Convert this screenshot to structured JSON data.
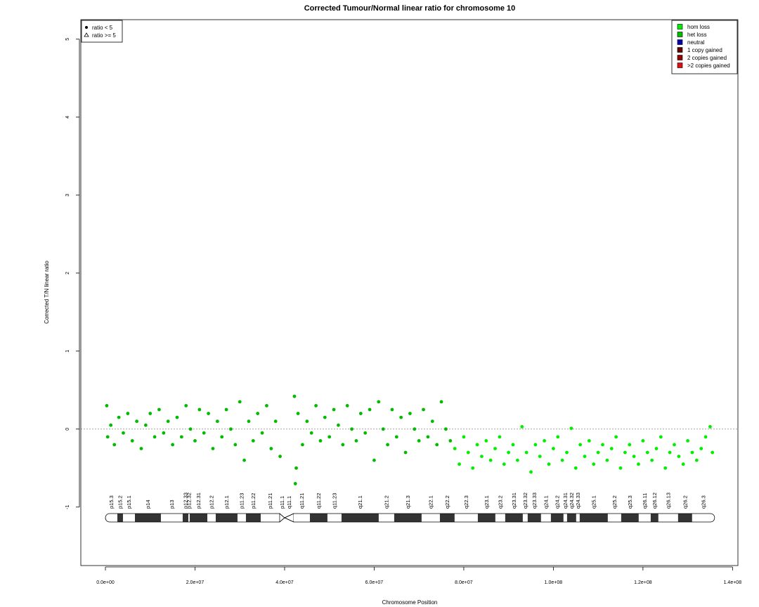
{
  "chart_data": {
    "type": "scatter",
    "title": "Corrected Tumour/Normal linear ratio for chromosome  10",
    "x_label": "Chromosome Position",
    "y_label": "Corrected T/N linear ratio",
    "xlim": [
      -5490000.0,
      141200000.0
    ],
    "ylim": [
      -1.75,
      5.25
    ],
    "xticks": [
      {
        "value": 0,
        "label": "0.0e+00"
      },
      {
        "value": 20000000.0,
        "label": "2.0e+07"
      },
      {
        "value": 40000000.0,
        "label": "4.0e+07"
      },
      {
        "value": 60000000.0,
        "label": "6.0e+07"
      },
      {
        "value": 80000000.0,
        "label": "8.0e+07"
      },
      {
        "value": 100000000.0,
        "label": "1.0e+08"
      },
      {
        "value": 120000000.0,
        "label": "1.2e+08"
      },
      {
        "value": 140000000.0,
        "label": "1.4e+08"
      }
    ],
    "yticks": [
      -1,
      0,
      1,
      2,
      3,
      4,
      5
    ],
    "reference_line": 0,
    "shape_legend": [
      {
        "label": "ratio < 5",
        "marker": "circle"
      },
      {
        "label": "ratio >= 5",
        "marker": "triangle"
      }
    ],
    "legend_position": "top-right",
    "series": [
      {
        "name": "hom loss",
        "color": "#00ee00",
        "x": [
          78000000.0,
          79000000.0,
          80000000.0,
          81000000.0,
          82000000.0,
          83000000.0,
          84000000.0,
          85000000.0,
          86000000.0,
          87000000.0,
          88000000.0,
          89000000.0,
          90000000.0,
          91000000.0,
          92000000.0,
          93000000.0,
          94000000.0,
          95000000.0,
          96000000.0,
          97000000.0,
          98000000.0,
          99000000.0,
          100000000.0,
          101000000.0,
          102000000.0,
          103000000.0,
          104000000.0,
          105000000.0,
          106000000.0,
          107000000.0,
          108000000.0,
          109000000.0,
          110000000.0,
          111000000.0,
          112000000.0,
          113000000.0,
          114000000.0,
          115000000.0,
          116000000.0,
          117000000.0,
          118000000.0,
          119000000.0,
          120000000.0,
          121000000.0,
          122000000.0,
          123000000.0,
          124000000.0,
          125000000.0,
          126000000.0,
          127000000.0,
          128000000.0,
          129000000.0,
          130000000.0,
          131000000.0,
          132000000.0,
          133000000.0,
          134000000.0,
          135000000.0,
          135500000.0
        ],
        "values": [
          -0.25,
          -0.45,
          -0.1,
          -0.3,
          -0.5,
          -0.2,
          -0.35,
          -0.15,
          -0.4,
          -0.25,
          -0.1,
          -0.45,
          -0.3,
          -0.2,
          -0.4,
          0.03,
          -0.3,
          -0.55,
          -0.2,
          -0.35,
          -0.15,
          -0.45,
          -0.25,
          -0.1,
          -0.4,
          -0.3,
          0.01,
          -0.5,
          -0.2,
          -0.35,
          -0.15,
          -0.45,
          -0.3,
          -0.2,
          -0.4,
          -0.25,
          -0.1,
          -0.5,
          -0.3,
          -0.2,
          -0.35,
          -0.45,
          -0.15,
          -0.3,
          -0.4,
          -0.25,
          -0.1,
          -0.5,
          -0.3,
          -0.2,
          -0.35,
          -0.45,
          -0.15,
          -0.3,
          -0.4,
          -0.25,
          -0.1,
          0.03,
          -0.3
        ]
      },
      {
        "name": "het loss",
        "color": "#00bb00",
        "x": [
          300000.0,
          500000.0,
          1200000.0,
          2000000.0,
          3000000.0,
          4000000.0,
          5000000.0,
          6000000.0,
          7000000.0,
          8000000.0,
          9000000.0,
          10000000.0,
          11000000.0,
          12000000.0,
          13000000.0,
          14000000.0,
          15000000.0,
          16000000.0,
          17000000.0,
          18000000.0,
          19000000.0,
          20000000.0,
          21000000.0,
          22000000.0,
          23000000.0,
          24000000.0,
          25000000.0,
          26000000.0,
          27000000.0,
          28000000.0,
          29000000.0,
          30000000.0,
          31000000.0,
          32000000.0,
          33000000.0,
          34000000.0,
          35000000.0,
          36000000.0,
          37000000.0,
          38000000.0,
          39000000.0,
          42200000.0,
          42400000.0,
          42600000.0,
          43000000.0,
          44000000.0,
          45000000.0,
          46000000.0,
          47000000.0,
          48000000.0,
          49000000.0,
          50000000.0,
          51000000.0,
          52000000.0,
          53000000.0,
          54000000.0,
          55000000.0,
          56000000.0,
          57000000.0,
          58000000.0,
          59000000.0,
          60000000.0,
          61000000.0,
          62000000.0,
          63000000.0,
          64000000.0,
          65000000.0,
          66000000.0,
          67000000.0,
          68000000.0,
          69000000.0,
          70000000.0,
          71000000.0,
          72000000.0,
          73000000.0,
          74000000.0,
          75000000.0,
          76000000.0,
          77000000.0
        ],
        "values": [
          0.3,
          -0.1,
          0.05,
          -0.2,
          0.15,
          -0.05,
          0.2,
          -0.15,
          0.1,
          -0.25,
          0.05,
          0.2,
          -0.1,
          0.25,
          -0.05,
          0.1,
          -0.2,
          0.15,
          -0.1,
          0.3,
          0.0,
          -0.15,
          0.25,
          -0.05,
          0.2,
          -0.25,
          0.1,
          -0.1,
          0.25,
          0.0,
          -0.2,
          0.35,
          -0.4,
          0.1,
          -0.15,
          0.2,
          -0.05,
          0.3,
          -0.25,
          0.1,
          -0.35,
          0.42,
          -0.7,
          -0.5,
          0.2,
          -0.2,
          0.1,
          -0.05,
          0.3,
          -0.15,
          0.15,
          -0.1,
          0.25,
          0.05,
          -0.2,
          0.3,
          0.0,
          -0.15,
          0.2,
          -0.05,
          0.25,
          -0.4,
          0.35,
          0.0,
          -0.2,
          0.25,
          -0.1,
          0.15,
          -0.3,
          0.2,
          0.0,
          -0.15,
          0.25,
          -0.1,
          0.1,
          -0.2,
          0.35,
          0.0,
          -0.15
        ]
      },
      {
        "name": "neutral",
        "color": "#0000aa",
        "x": [],
        "values": []
      },
      {
        "name": "1 copy gained",
        "color": "#660000",
        "x": [],
        "values": []
      },
      {
        "name": "2 copies gained",
        "color": "#990000",
        "x": [],
        "values": []
      },
      {
        "name": ">2 copies gained",
        "color": "#dd1111",
        "x": [],
        "values": []
      }
    ],
    "bands": [
      {
        "name": "p15.3",
        "start": 0,
        "end": 2670000.0,
        "stain": "gneg"
      },
      {
        "name": "p15.2",
        "start": 2670000.0,
        "end": 3920000.0,
        "stain": "gpos"
      },
      {
        "name": "p15.1",
        "start": 3920000.0,
        "end": 6590000.0,
        "stain": "gneg"
      },
      {
        "name": "p14",
        "start": 6590000.0,
        "end": 12390000.0,
        "stain": "gpos"
      },
      {
        "name": "p13",
        "start": 12390000.0,
        "end": 17250000.0,
        "stain": "gneg"
      },
      {
        "name": "p12.33",
        "start": 17250000.0,
        "end": 18510000.0,
        "stain": "gpos"
      },
      {
        "name": "p12.32",
        "start": 18510000.0,
        "end": 18820000.0,
        "stain": "gneg"
      },
      {
        "name": "p12.31",
        "start": 18820000.0,
        "end": 22750000.0,
        "stain": "gpos"
      },
      {
        "name": "p12.2",
        "start": 22750000.0,
        "end": 24630000.0,
        "stain": "gneg"
      },
      {
        "name": "p12.1",
        "start": 24630000.0,
        "end": 29490000.0,
        "stain": "gpos"
      },
      {
        "name": "p11.23",
        "start": 29490000.0,
        "end": 31370000.0,
        "stain": "gneg"
      },
      {
        "name": "p11.22",
        "start": 31370000.0,
        "end": 34670000.0,
        "stain": "gpos"
      },
      {
        "name": "p11.21",
        "start": 34670000.0,
        "end": 38900000.0,
        "stain": "gneg"
      },
      {
        "name": "p11.1",
        "start": 38900000.0,
        "end": 40000000.0,
        "stain": "acen"
      },
      {
        "name": "q11.1",
        "start": 40000000.0,
        "end": 42040000.0,
        "stain": "acen"
      },
      {
        "name": "q11.21",
        "start": 42040000.0,
        "end": 45650000.0,
        "stain": "gneg"
      },
      {
        "name": "q11.22",
        "start": 45650000.0,
        "end": 49570000.0,
        "stain": "gpos"
      },
      {
        "name": "q11.23",
        "start": 49570000.0,
        "end": 52710000.0,
        "stain": "gneg"
      },
      {
        "name": "q21.1",
        "start": 52710000.0,
        "end": 61020000.0,
        "stain": "gpos"
      },
      {
        "name": "q21.2",
        "start": 61020000.0,
        "end": 64470000.0,
        "stain": "gneg"
      },
      {
        "name": "q21.3",
        "start": 64470000.0,
        "end": 70590000.0,
        "stain": "gpos"
      },
      {
        "name": "q22.1",
        "start": 70590000.0,
        "end": 74670000.0,
        "stain": "gneg"
      },
      {
        "name": "q22.2",
        "start": 74670000.0,
        "end": 77960000.0,
        "stain": "gpos"
      },
      {
        "name": "q22.3",
        "start": 77960000.0,
        "end": 83140000.0,
        "stain": "gneg"
      },
      {
        "name": "q23.1",
        "start": 83140000.0,
        "end": 87060000.0,
        "stain": "gpos"
      },
      {
        "name": "q23.2",
        "start": 87060000.0,
        "end": 89250000.0,
        "stain": "gneg"
      },
      {
        "name": "q23.31",
        "start": 89250000.0,
        "end": 93180000.0,
        "stain": "gpos"
      },
      {
        "name": "q23.32",
        "start": 93180000.0,
        "end": 94270000.0,
        "stain": "gneg"
      },
      {
        "name": "q23.33",
        "start": 94270000.0,
        "end": 97250000.0,
        "stain": "gpos"
      },
      {
        "name": "q24.1",
        "start": 97250000.0,
        "end": 99450000.0,
        "stain": "gneg"
      },
      {
        "name": "q24.2",
        "start": 99450000.0,
        "end": 102270000.0,
        "stain": "gpos"
      },
      {
        "name": "q24.31",
        "start": 102270000.0,
        "end": 103060000.0,
        "stain": "gneg"
      },
      {
        "name": "q24.32",
        "start": 103060000.0,
        "end": 105100000.0,
        "stain": "gpos"
      },
      {
        "name": "q24.33",
        "start": 105100000.0,
        "end": 105880000.0,
        "stain": "gneg"
      },
      {
        "name": "q25.1",
        "start": 105880000.0,
        "end": 112160000.0,
        "stain": "gpos"
      },
      {
        "name": "q25.2",
        "start": 112160000.0,
        "end": 115140000.0,
        "stain": "gneg"
      },
      {
        "name": "q25.3",
        "start": 115140000.0,
        "end": 119060000.0,
        "stain": "gpos"
      },
      {
        "name": "q26.11",
        "start": 119060000.0,
        "end": 121730000.0,
        "stain": "gneg"
      },
      {
        "name": "q26.12",
        "start": 121730000.0,
        "end": 123450000.0,
        "stain": "gpos"
      },
      {
        "name": "q26.13",
        "start": 123450000.0,
        "end": 127840000.0,
        "stain": "gneg"
      },
      {
        "name": "q26.2",
        "start": 127840000.0,
        "end": 130980000.0,
        "stain": "gpos"
      },
      {
        "name": "q26.3",
        "start": 130980000.0,
        "end": 136000000.0,
        "stain": "gneg"
      }
    ]
  }
}
